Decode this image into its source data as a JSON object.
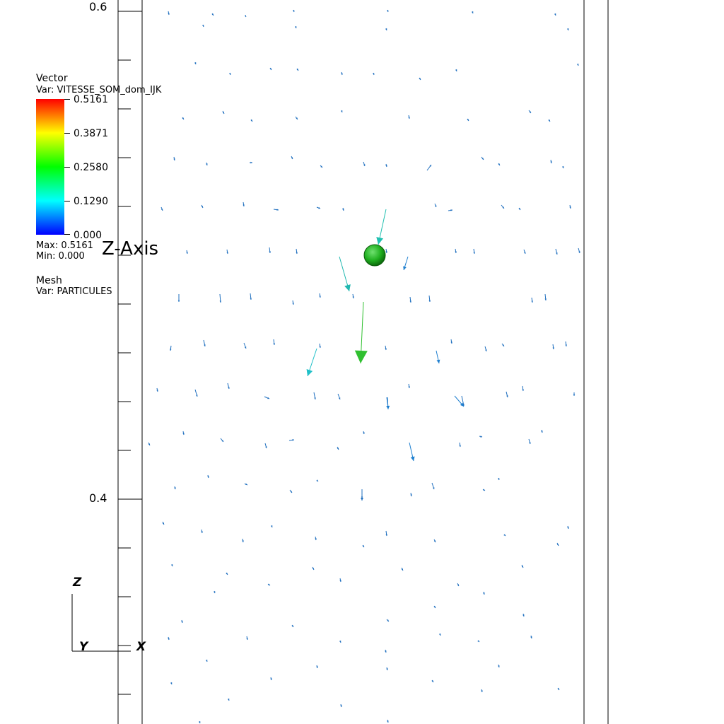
{
  "legend_vector": {
    "title": "Vector",
    "var": "Var: VITESSE_SOM_dom_IJK",
    "colorbar_labels": [
      "0.5161",
      "0.3871",
      "0.2580",
      "0.1290",
      "0.000"
    ],
    "max": "Max:  0.5161",
    "min": "Min:  0.000"
  },
  "legend_mesh": {
    "title": "Mesh",
    "var": "Var: PARTICULES"
  },
  "axis": {
    "title": "Z-Axis",
    "tick_labels": [
      "0.6",
      "0.4"
    ]
  },
  "triad": {
    "z": "Z",
    "y": "Y",
    "x": "X"
  },
  "colormap": [
    "#0000ff",
    "#00ffff",
    "#00ff00",
    "#ffff00",
    "#ff0000"
  ],
  "chart_data": {
    "type": "scatter",
    "description_kind": "vector-field",
    "ylabel": "Z-Axis",
    "ylim": [
      0.6,
      0.4
    ],
    "y_ticks_labeled": [
      0.6,
      0.4
    ],
    "vector_magnitude_range": [
      0.0,
      0.5161
    ],
    "particle_color": "#22bb22",
    "arrows_color_low": "#1f6fbf",
    "arrows_color_mid": "#20c0b0",
    "arrows_color_high": "#30c030"
  }
}
